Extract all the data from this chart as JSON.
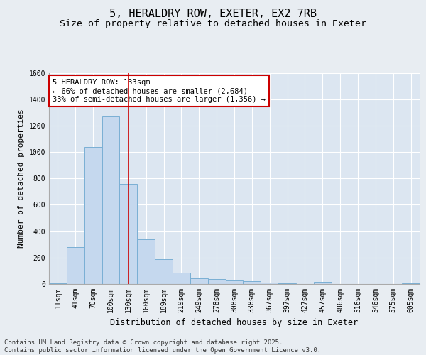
{
  "title_line1": "5, HERALDRY ROW, EXETER, EX2 7RB",
  "title_line2": "Size of property relative to detached houses in Exeter",
  "xlabel": "Distribution of detached houses by size in Exeter",
  "ylabel": "Number of detached properties",
  "bar_color": "#c5d8ee",
  "bar_edge_color": "#7aafd4",
  "fig_bg_color": "#e8edf2",
  "plot_bg_color": "#dce6f1",
  "categories": [
    "11sqm",
    "41sqm",
    "70sqm",
    "100sqm",
    "130sqm",
    "160sqm",
    "189sqm",
    "219sqm",
    "249sqm",
    "278sqm",
    "308sqm",
    "338sqm",
    "367sqm",
    "397sqm",
    "427sqm",
    "457sqm",
    "486sqm",
    "516sqm",
    "546sqm",
    "575sqm",
    "605sqm"
  ],
  "values": [
    5,
    280,
    1040,
    1270,
    760,
    340,
    190,
    85,
    45,
    38,
    28,
    22,
    12,
    5,
    0,
    15,
    0,
    0,
    0,
    0,
    5
  ],
  "ylim": [
    0,
    1600
  ],
  "yticks": [
    0,
    200,
    400,
    600,
    800,
    1000,
    1200,
    1400,
    1600
  ],
  "vline_pos": 4.0,
  "vline_color": "#cc0000",
  "annotation_text": "5 HERALDRY ROW: 133sqm\n← 66% of detached houses are smaller (2,684)\n33% of semi-detached houses are larger (1,356) →",
  "annotation_box_color": "#cc0000",
  "annotation_fill": "#ffffff",
  "footer_text": "Contains HM Land Registry data © Crown copyright and database right 2025.\nContains public sector information licensed under the Open Government Licence v3.0.",
  "title_fontsize": 11,
  "subtitle_fontsize": 9.5,
  "axis_label_fontsize": 8,
  "tick_fontsize": 7,
  "annotation_fontsize": 7.5,
  "footer_fontsize": 6.5
}
